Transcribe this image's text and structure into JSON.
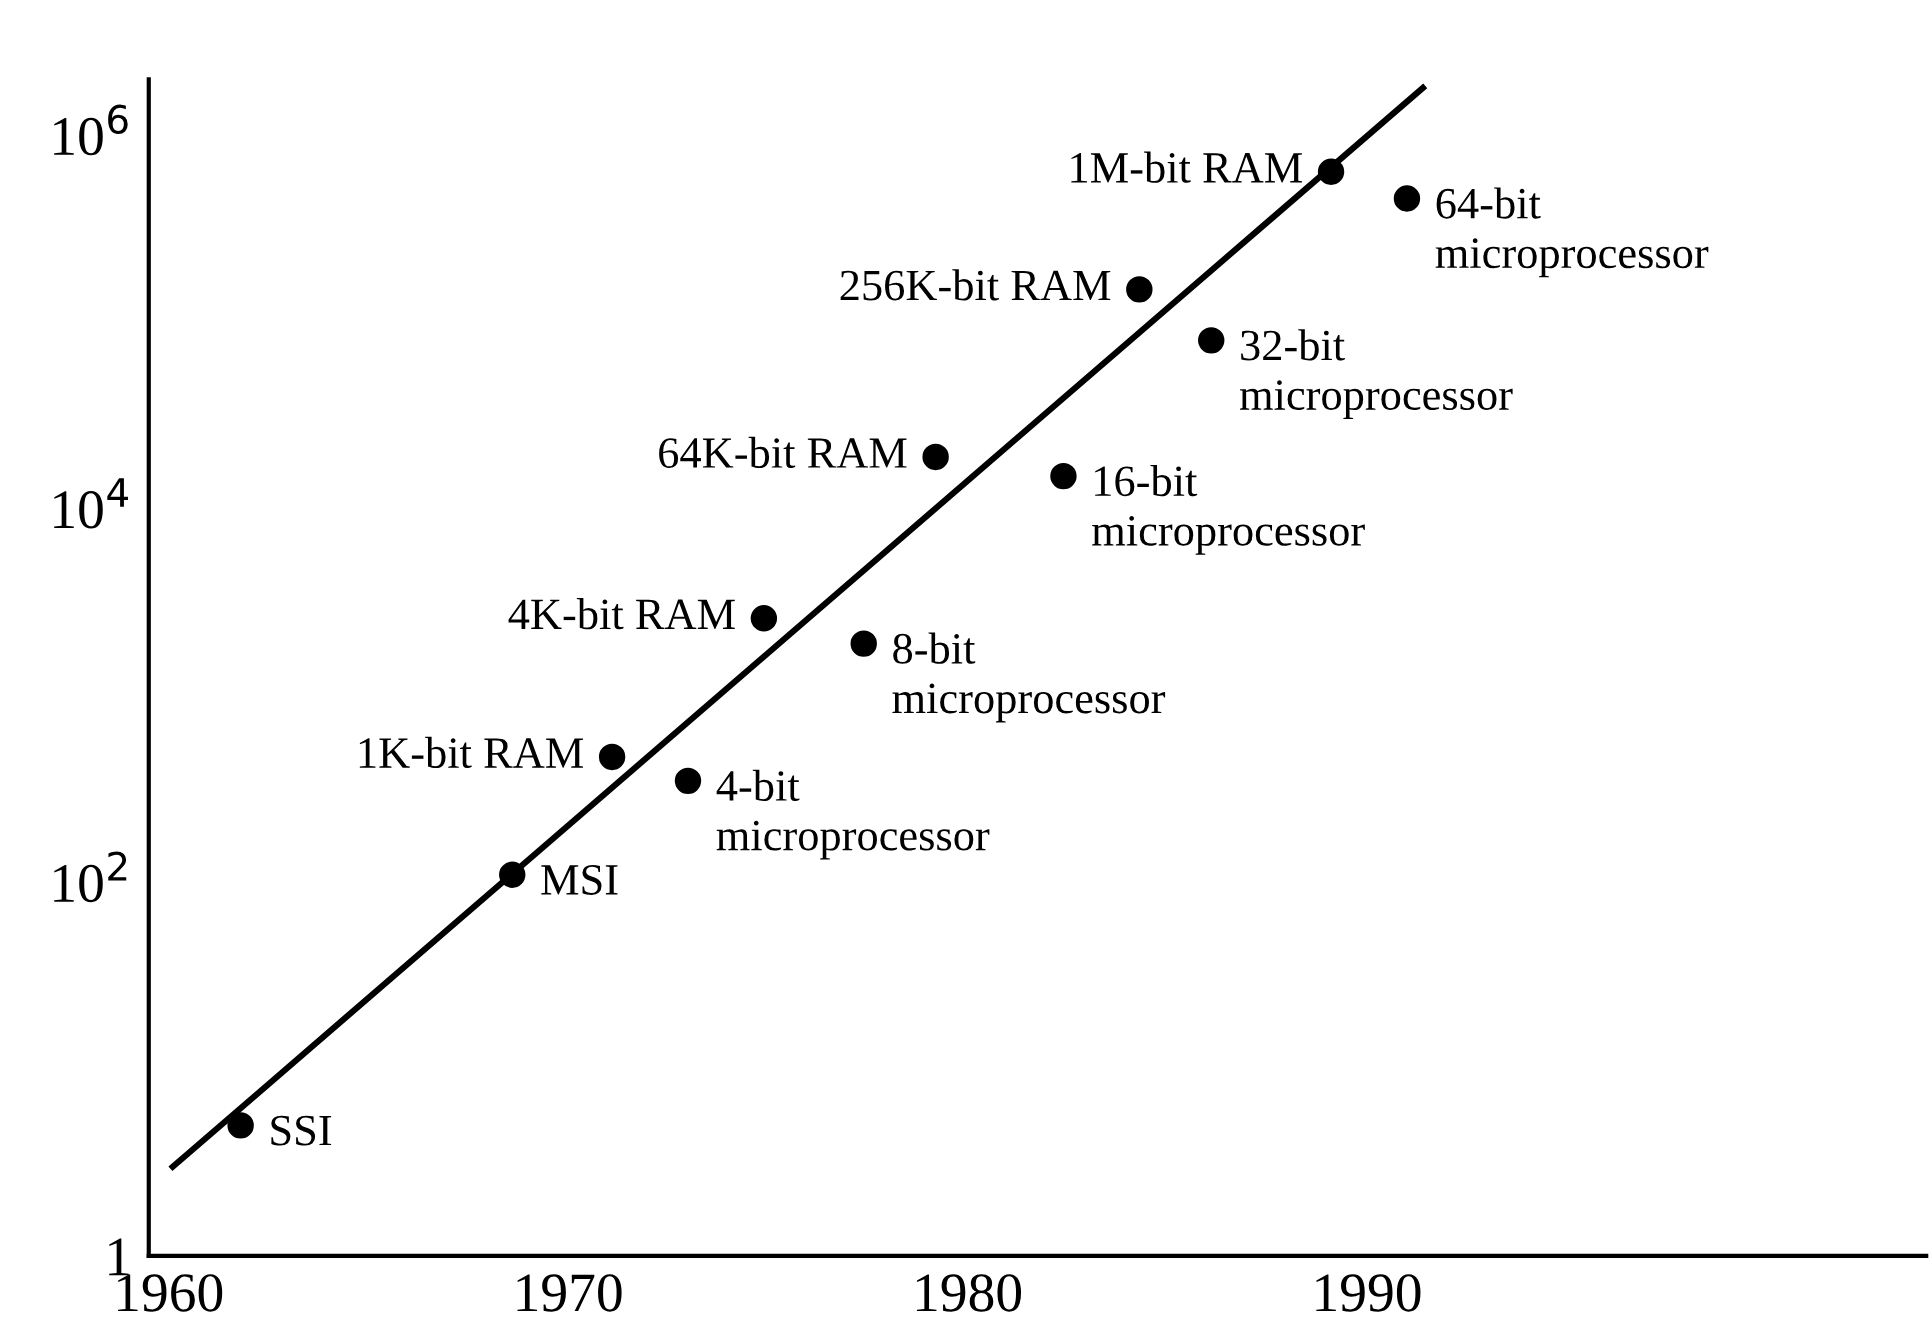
{
  "chart_data": {
    "type": "scatter",
    "log": "y",
    "marker": "circle",
    "grid": false,
    "legend": false,
    "xlim": [
      1959.5,
      2004
    ],
    "ylim": [
      1,
      2000000
    ],
    "xticks": [
      1960,
      1970,
      1980,
      1990
    ],
    "yticks": [
      1,
      {
        "value": 100,
        "label": "10$^{2}$"
      },
      {
        "value": 10000,
        "label": "10$^{4}$"
      },
      {
        "value": 1000000,
        "label": "10$^{6}$"
      }
    ],
    "series": [
      {
        "color": "#000000",
        "x": [
          1961.8,
          1968.6,
          1971.1,
          1973.0,
          1974.9,
          1977.4,
          1979.2,
          1982.4,
          1984.3,
          1986.1,
          1989.1,
          1991.0
        ],
        "values": [
          5,
          110,
          470,
          350,
          2600,
          1900,
          19000,
          15000,
          150000,
          80000,
          640000,
          460000
        ]
      },
      {
        "type": "line",
        "color": "#000000",
        "x": [
          1960.1,
          1991.4
        ],
        "values": [
          3,
          1800000
        ],
        "marker": "none"
      }
    ],
    "annotations": [
      {
        "text": "SSI",
        "x": 1961.8,
        "y": 5
      },
      {
        "text": "MSI",
        "x": 1968.6,
        "y": 110
      },
      {
        "text": "1K-bit RAM",
        "x": 1971.1,
        "y": 470
      },
      {
        "text": "4-bit\nmicroprocessor",
        "x": 1973.0,
        "y": 350
      },
      {
        "text": "4K-bit RAM",
        "x": 1974.9,
        "y": 2600
      },
      {
        "text": "8-bit\nmicroprocessor",
        "x": 1977.4,
        "y": 1900
      },
      {
        "text": "64K-bit RAM",
        "x": 1979.2,
        "y": 19000
      },
      {
        "text": "16-bit\nmicroprocessor",
        "x": 1982.4,
        "y": 15000
      },
      {
        "text": "256K-bit RAM",
        "x": 1984.3,
        "y": 150000
      },
      {
        "text": "32-bit\nmicroprocessor",
        "x": 1986.1,
        "y": 80000
      },
      {
        "text": "1M-bit RAM",
        "x": 1989.1,
        "y": 640000
      },
      {
        "text": "64-bit\nmicroprocessor",
        "x": 1991.0,
        "y": 460000
      }
    ]
  }
}
